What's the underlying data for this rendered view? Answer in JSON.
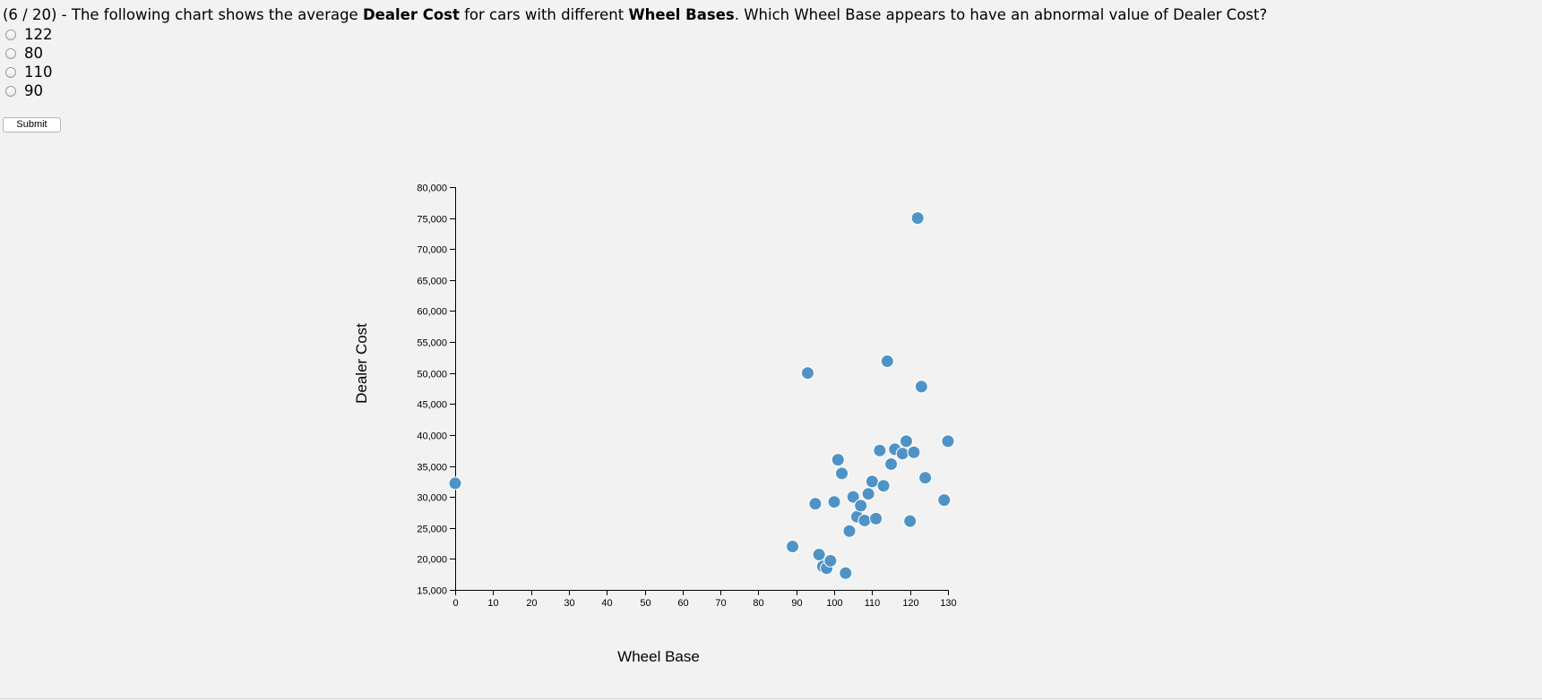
{
  "question": {
    "prefix": "(6 / 20) - The following chart shows the average ",
    "bold1": "Dealer Cost",
    "middle": " for cars with different ",
    "bold2": "Wheel Bases",
    "suffix": ". Which Wheel Base appears to have an abnormal value of Dealer Cost?"
  },
  "options": [
    "122",
    "80",
    "110",
    "90"
  ],
  "submit_label": "Submit",
  "colors": {
    "point": "#4f93c6",
    "background": "#f2f2f2"
  },
  "chart_data": {
    "type": "scatter",
    "xlabel": "Wheel Base",
    "ylabel": "Dealer Cost",
    "xlim": [
      0,
      130
    ],
    "ylim": [
      15000,
      80000
    ],
    "x_ticks": [
      "0",
      "10",
      "20",
      "30",
      "40",
      "50",
      "60",
      "70",
      "80",
      "90",
      "100",
      "110",
      "120",
      "130"
    ],
    "y_ticks": [
      "15,000",
      "20,000",
      "25,000",
      "30,000",
      "35,000",
      "40,000",
      "45,000",
      "50,000",
      "55,000",
      "60,000",
      "65,000",
      "70,000",
      "75,000",
      "80,000"
    ],
    "points": [
      {
        "x": 0,
        "y": 32200
      },
      {
        "x": 89,
        "y": 22000
      },
      {
        "x": 93,
        "y": 50000
      },
      {
        "x": 95,
        "y": 28900
      },
      {
        "x": 96,
        "y": 20700
      },
      {
        "x": 97,
        "y": 18800
      },
      {
        "x": 98,
        "y": 18500
      },
      {
        "x": 99,
        "y": 19700
      },
      {
        "x": 100,
        "y": 29200
      },
      {
        "x": 101,
        "y": 36000
      },
      {
        "x": 102,
        "y": 33800
      },
      {
        "x": 103,
        "y": 17700
      },
      {
        "x": 104,
        "y": 24500
      },
      {
        "x": 105,
        "y": 30000
      },
      {
        "x": 106,
        "y": 26800
      },
      {
        "x": 107,
        "y": 28600
      },
      {
        "x": 108,
        "y": 26200
      },
      {
        "x": 109,
        "y": 30500
      },
      {
        "x": 110,
        "y": 32500
      },
      {
        "x": 111,
        "y": 26500
      },
      {
        "x": 112,
        "y": 37500
      },
      {
        "x": 113,
        "y": 31800
      },
      {
        "x": 114,
        "y": 51900
      },
      {
        "x": 115,
        "y": 35300
      },
      {
        "x": 116,
        "y": 37700
      },
      {
        "x": 118,
        "y": 37000
      },
      {
        "x": 119,
        "y": 39000
      },
      {
        "x": 120,
        "y": 26100
      },
      {
        "x": 121,
        "y": 37200
      },
      {
        "x": 122,
        "y": 75000
      },
      {
        "x": 123,
        "y": 47800
      },
      {
        "x": 124,
        "y": 33100
      },
      {
        "x": 129,
        "y": 29500
      },
      {
        "x": 130,
        "y": 39000
      }
    ]
  }
}
